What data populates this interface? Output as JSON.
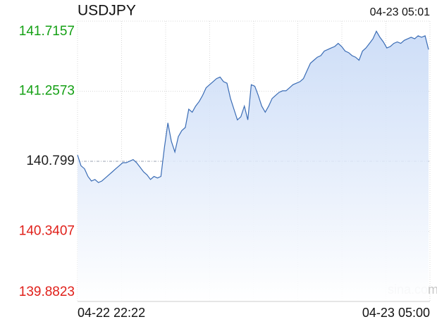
{
  "chart_data": {
    "type": "area",
    "title": "USDJPY",
    "timestamp": "04-23 05:01",
    "watermark": "sina.com",
    "line_color": "#3a6cb5",
    "fill_color": "#c5d8f6",
    "grid": true,
    "ylim": [
      139.8823,
      141.7157
    ],
    "yticks": [
      141.7157,
      141.2573,
      140.799,
      {
        "value": 140.3407,
        "label": "140.3407"
      },
      139.8823
    ],
    "ytick_colors": [
      "#14a014",
      "#14a014",
      "#222222",
      "#e0201a",
      "#e0201a"
    ],
    "reference_value": 140.799,
    "xlim": [
      0,
      101
    ],
    "xticks": [
      {
        "value": 0,
        "label": "04-22 22:22"
      },
      {
        "value": 101,
        "label": "04-23 05:00"
      }
    ],
    "values": [
      140.84,
      140.77,
      140.75,
      140.7,
      140.67,
      140.68,
      140.66,
      140.67,
      140.69,
      140.71,
      140.73,
      140.75,
      140.77,
      140.79,
      140.79,
      140.8,
      140.81,
      140.79,
      140.76,
      140.73,
      140.71,
      140.68,
      140.7,
      140.69,
      140.7,
      140.89,
      141.05,
      140.93,
      140.86,
      140.96,
      141.0,
      141.02,
      141.14,
      141.12,
      141.16,
      141.19,
      141.23,
      141.28,
      141.3,
      141.32,
      141.34,
      141.35,
      141.32,
      141.31,
      141.21,
      141.14,
      141.07,
      141.09,
      141.16,
      141.07,
      141.3,
      141.29,
      141.23,
      141.16,
      141.12,
      141.16,
      141.21,
      141.23,
      141.25,
      141.26,
      141.26,
      141.28,
      141.3,
      141.31,
      141.32,
      141.34,
      141.39,
      141.44,
      141.46,
      141.48,
      141.49,
      141.52,
      141.53,
      141.54,
      141.55,
      141.57,
      141.55,
      141.52,
      141.51,
      141.49,
      141.48,
      141.46,
      141.52,
      141.54,
      141.57,
      141.6,
      141.65,
      141.61,
      141.58,
      141.54,
      141.55,
      141.57,
      141.58,
      141.57,
      141.59,
      141.6,
      141.61,
      141.6,
      141.62,
      141.61,
      141.62,
      141.53
    ]
  }
}
